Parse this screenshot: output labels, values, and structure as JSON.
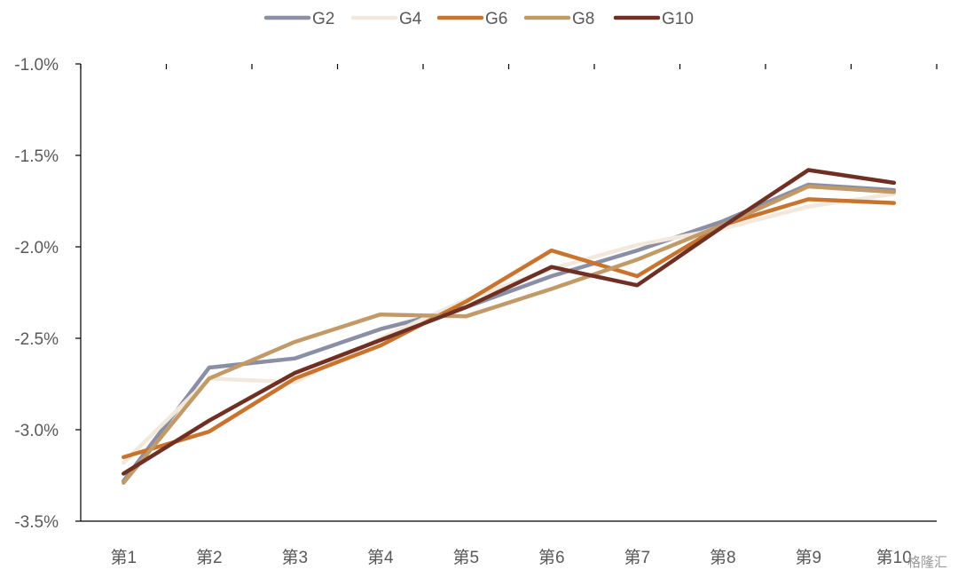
{
  "chart_data": {
    "type": "line",
    "title": "",
    "xlabel": "",
    "ylabel": "",
    "categories": [
      "第1",
      "第2",
      "第3",
      "第4",
      "第5",
      "第6",
      "第7",
      "第8",
      "第9",
      "第10"
    ],
    "y_unit": "%",
    "ylim": [
      -3.5,
      -1.0
    ],
    "y_ticks": [
      -1.0,
      -1.5,
      -2.0,
      -2.5,
      -3.0,
      -3.5
    ],
    "y_tick_labels": [
      "-1.0%",
      "-1.5%",
      "-2.0%",
      "-2.5%",
      "-3.0%",
      "-3.5%"
    ],
    "grid": false,
    "legend_position": "top-center",
    "series": [
      {
        "name": "G2",
        "color": "#8a8fa6",
        "values": [
          -3.28,
          -2.66,
          -2.61,
          -2.45,
          -2.33,
          -2.16,
          -2.02,
          -1.86,
          -1.66,
          -1.69
        ]
      },
      {
        "name": "G4",
        "color": "#f3e8dc",
        "values": [
          -3.18,
          -2.72,
          -2.74,
          -2.5,
          -2.29,
          -2.12,
          -1.99,
          -1.9,
          -1.78,
          -1.71
        ]
      },
      {
        "name": "G6",
        "color": "#c8732e",
        "values": [
          -3.15,
          -3.01,
          -2.72,
          -2.54,
          -2.3,
          -2.02,
          -2.16,
          -1.88,
          -1.74,
          -1.76
        ]
      },
      {
        "name": "G8",
        "color": "#c19a68",
        "values": [
          -3.29,
          -2.72,
          -2.52,
          -2.37,
          -2.38,
          -2.23,
          -2.07,
          -1.88,
          -1.67,
          -1.7
        ]
      },
      {
        "name": "G10",
        "color": "#6f2f23",
        "values": [
          -3.24,
          -2.95,
          -2.69,
          -2.51,
          -2.33,
          -2.11,
          -2.21,
          -1.89,
          -1.58,
          -1.65
        ]
      }
    ]
  },
  "watermark": "格隆汇"
}
